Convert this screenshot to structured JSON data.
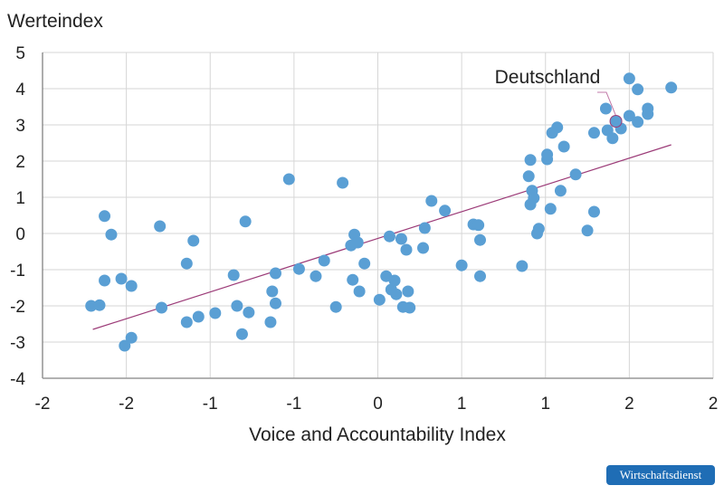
{
  "chart_data": {
    "type": "scatter",
    "title": "",
    "ylabel": "Werteindex",
    "xlabel": "Voice and Accountability Index",
    "xlim": [
      -2,
      2
    ],
    "ylim": [
      -4,
      5
    ],
    "grid": true,
    "x_ticks": [
      -2,
      -1.5,
      -1,
      -0.5,
      0,
      0.5,
      1,
      1.5,
      2
    ],
    "x_tick_labels": [
      "-2",
      "-2",
      "-1",
      "-1",
      "0",
      "1",
      "1",
      "2",
      "2"
    ],
    "y_ticks": [
      -4,
      -3,
      -2,
      -1,
      0,
      1,
      2,
      3,
      4,
      5
    ],
    "y_tick_labels": [
      "-4",
      "-3",
      "-2",
      "-1",
      "0",
      "1",
      "2",
      "3",
      "4",
      "5"
    ],
    "point_color": "#5a9fd4",
    "trend_color": "#9c3b78",
    "trendline": {
      "x": [
        -1.7,
        1.75
      ],
      "y": [
        -2.65,
        2.45
      ]
    },
    "annotation": {
      "text": "Deutschland",
      "x": 1.42,
      "y": 3.1
    },
    "points": [
      [
        -1.63,
        0.48
      ],
      [
        -1.59,
        -0.03
      ],
      [
        -1.63,
        -1.3
      ],
      [
        -1.71,
        -2.0
      ],
      [
        -1.66,
        -1.98
      ],
      [
        -1.53,
        -1.25
      ],
      [
        -1.47,
        -1.45
      ],
      [
        -1.51,
        -3.1
      ],
      [
        -1.47,
        -2.88
      ],
      [
        -1.3,
        0.2
      ],
      [
        -1.29,
        -2.05
      ],
      [
        -1.14,
        -0.83
      ],
      [
        -1.14,
        -2.45
      ],
      [
        -1.1,
        -0.2
      ],
      [
        -1.07,
        -2.3
      ],
      [
        -0.97,
        -2.2
      ],
      [
        -0.86,
        -1.15
      ],
      [
        -0.84,
        -2.0
      ],
      [
        -0.81,
        -2.78
      ],
      [
        -0.79,
        0.33
      ],
      [
        -0.77,
        -2.18
      ],
      [
        -0.64,
        -2.45
      ],
      [
        -0.63,
        -1.6
      ],
      [
        -0.61,
        -1.1
      ],
      [
        -0.61,
        -1.93
      ],
      [
        -0.53,
        1.5
      ],
      [
        -0.47,
        -0.98
      ],
      [
        -0.37,
        -1.18
      ],
      [
        -0.32,
        -0.75
      ],
      [
        -0.25,
        -2.03
      ],
      [
        -0.21,
        1.4
      ],
      [
        -0.16,
        -0.33
      ],
      [
        -0.15,
        -1.28
      ],
      [
        -0.14,
        -0.03
      ],
      [
        -0.12,
        -0.25
      ],
      [
        -0.11,
        -1.6
      ],
      [
        -0.08,
        -0.83
      ],
      [
        0.01,
        -1.83
      ],
      [
        0.05,
        -1.18
      ],
      [
        0.07,
        -0.08
      ],
      [
        0.08,
        -1.55
      ],
      [
        0.1,
        -1.3
      ],
      [
        0.11,
        -1.68
      ],
      [
        0.15,
        -2.03
      ],
      [
        0.18,
        -1.6
      ],
      [
        0.19,
        -2.05
      ],
      [
        0.14,
        -0.15
      ],
      [
        0.17,
        -0.45
      ],
      [
        0.27,
        -0.4
      ],
      [
        0.28,
        0.15
      ],
      [
        0.32,
        0.9
      ],
      [
        0.4,
        0.63
      ],
      [
        0.5,
        -0.88
      ],
      [
        0.57,
        0.25
      ],
      [
        0.6,
        0.23
      ],
      [
        0.61,
        -1.18
      ],
      [
        0.61,
        -0.18
      ],
      [
        0.86,
        -0.9
      ],
      [
        0.9,
        1.58
      ],
      [
        0.91,
        2.03
      ],
      [
        0.91,
        0.8
      ],
      [
        0.92,
        1.18
      ],
      [
        0.93,
        0.98
      ],
      [
        0.95,
        0.0
      ],
      [
        0.96,
        0.13
      ],
      [
        1.01,
        2.05
      ],
      [
        1.01,
        2.18
      ],
      [
        1.03,
        0.68
      ],
      [
        1.04,
        2.78
      ],
      [
        1.07,
        2.93
      ],
      [
        1.09,
        1.18
      ],
      [
        1.11,
        2.4
      ],
      [
        1.18,
        1.63
      ],
      [
        1.25,
        0.08
      ],
      [
        1.29,
        0.6
      ],
      [
        1.29,
        2.78
      ],
      [
        1.36,
        3.45
      ],
      [
        1.37,
        2.85
      ],
      [
        1.4,
        2.63
      ],
      [
        1.42,
        3.1
      ],
      [
        1.45,
        2.9
      ],
      [
        1.5,
        4.28
      ],
      [
        1.5,
        3.25
      ],
      [
        1.55,
        3.98
      ],
      [
        1.55,
        3.08
      ],
      [
        1.61,
        3.45
      ],
      [
        1.61,
        3.3
      ],
      [
        1.75,
        4.03
      ]
    ]
  },
  "footer": {
    "brand": "Wirtschaftsdienst"
  }
}
